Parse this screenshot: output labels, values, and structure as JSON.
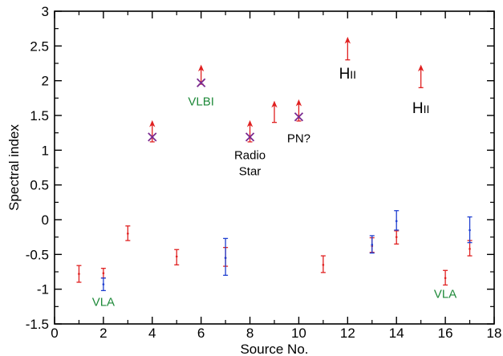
{
  "chart_data": {
    "type": "scatter",
    "xlabel": "Source No.",
    "ylabel": "Spectral index",
    "xlim": [
      0,
      18
    ],
    "ylim": [
      -1.5,
      3
    ],
    "x_ticks": [
      0,
      2,
      4,
      6,
      8,
      10,
      12,
      14,
      16,
      18
    ],
    "y_ticks": [
      -1.5,
      -1,
      -0.5,
      0,
      0.5,
      1,
      1.5,
      2,
      2.5,
      3
    ],
    "grid": false,
    "colors": {
      "red": "#e02020",
      "blue": "#1f3fd0",
      "purple": "#7a2a90",
      "green": "#1f8a3a",
      "axis": "#000000"
    },
    "series": [
      {
        "color": "red",
        "marker": "errorbar",
        "points": [
          {
            "x": 1,
            "y": -0.78,
            "lo": -0.9,
            "hi": -0.66
          },
          {
            "x": 2,
            "y": -0.77,
            "lo": -0.84,
            "hi": -0.7
          },
          {
            "x": 3,
            "y": -0.2,
            "lo": -0.3,
            "hi": -0.09
          },
          {
            "x": 5,
            "y": -0.53,
            "lo": -0.65,
            "hi": -0.43
          },
          {
            "x": 7,
            "y": -0.55,
            "lo": -0.67,
            "hi": -0.4
          },
          {
            "x": 11,
            "y": -0.65,
            "lo": -0.76,
            "hi": -0.52
          },
          {
            "x": 13,
            "y": -0.38,
            "lo": -0.47,
            "hi": -0.26
          },
          {
            "x": 14,
            "y": -0.25,
            "lo": -0.35,
            "hi": -0.16
          },
          {
            "x": 16,
            "y": -0.84,
            "lo": -0.94,
            "hi": -0.73
          },
          {
            "x": 17,
            "y": -0.42,
            "lo": -0.52,
            "hi": -0.3
          }
        ]
      },
      {
        "color": "blue",
        "marker": "errorbar",
        "points": [
          {
            "x": 2,
            "y": -0.93,
            "lo": -1.02,
            "hi": -0.84
          },
          {
            "x": 7,
            "y": -0.55,
            "lo": -0.8,
            "hi": -0.27
          },
          {
            "x": 13,
            "y": -0.36,
            "lo": -0.48,
            "hi": -0.23
          },
          {
            "x": 14,
            "y": -0.02,
            "lo": -0.15,
            "hi": 0.13
          },
          {
            "x": 17,
            "y": -0.15,
            "lo": -0.33,
            "hi": 0.04
          }
        ]
      },
      {
        "color": "red",
        "marker": "lower-limit",
        "points": [
          {
            "x": 4,
            "y": 1.12,
            "y_end": 1.4
          },
          {
            "x": 6,
            "y": 1.95,
            "y_end": 2.2
          },
          {
            "x": 8,
            "y": 1.12,
            "y_end": 1.4
          },
          {
            "x": 9,
            "y": 1.4,
            "y_end": 1.68
          },
          {
            "x": 10,
            "y": 1.42,
            "y_end": 1.7
          },
          {
            "x": 12,
            "y": 2.3,
            "y_end": 2.6
          },
          {
            "x": 15,
            "y": 1.9,
            "y_end": 2.2
          }
        ]
      },
      {
        "color": "purple",
        "marker": "x",
        "points": [
          {
            "x": 4,
            "y": 1.19
          },
          {
            "x": 6,
            "y": 1.97
          },
          {
            "x": 8,
            "y": 1.19
          },
          {
            "x": 10,
            "y": 1.48
          }
        ]
      }
    ],
    "annotations": [
      {
        "id": "vla-left",
        "text": "VLA",
        "x": 2,
        "y": -1.18,
        "color": "green"
      },
      {
        "id": "vlbi",
        "text": "VLBI",
        "x": 6,
        "y": 1.7,
        "color": "green"
      },
      {
        "id": "radio",
        "text": "Radio",
        "x": 8,
        "y": 0.93,
        "color": "black"
      },
      {
        "id": "star",
        "text": "Star",
        "x": 8,
        "y": 0.7,
        "color": "black"
      },
      {
        "id": "pn",
        "text": "PN?",
        "x": 10,
        "y": 1.17,
        "color": "black"
      },
      {
        "id": "hii-12",
        "text": "HII",
        "x": 12,
        "y": 2.09,
        "color": "black"
      },
      {
        "id": "hii-15",
        "text": "HII",
        "x": 15,
        "y": 1.59,
        "color": "black"
      },
      {
        "id": "vla-right",
        "text": "VLA",
        "x": 16,
        "y": -1.07,
        "color": "green"
      }
    ]
  }
}
